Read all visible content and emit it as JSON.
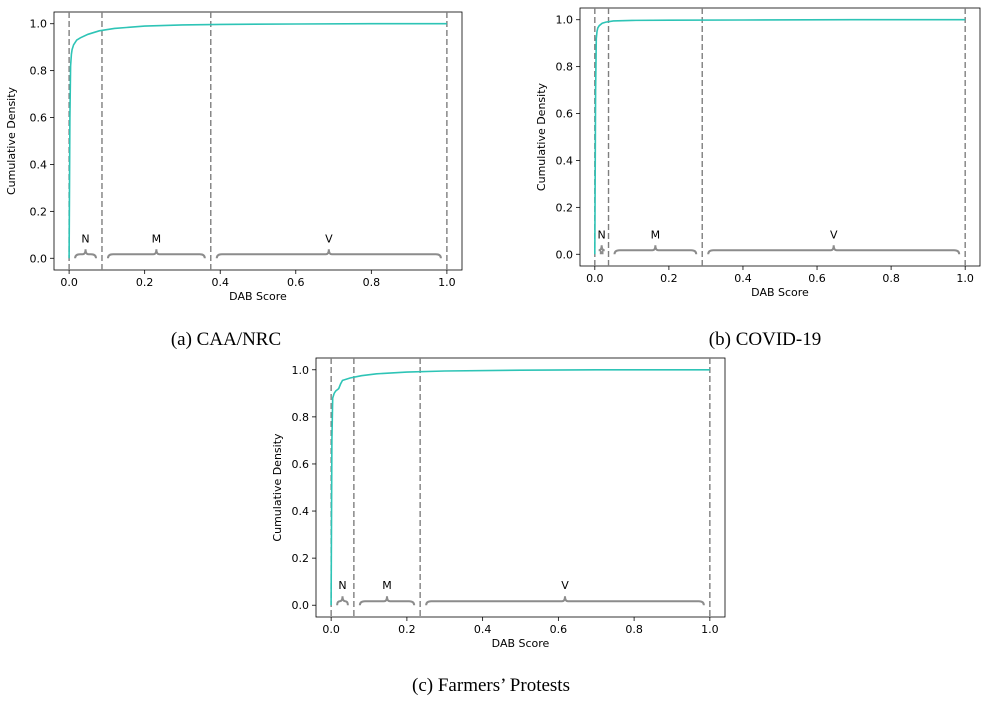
{
  "chart_data": [
    {
      "type": "line",
      "caption": "(a) CAA/NRC",
      "xlabel": "DAB Score",
      "ylabel": "Cumulative Density",
      "xlim": [
        -0.04,
        1.04
      ],
      "ylim": [
        -0.05,
        1.05
      ],
      "xticks": [
        "0.0",
        "0.2",
        "0.4",
        "0.6",
        "0.8",
        "1.0"
      ],
      "yticks": [
        "0.0",
        "0.2",
        "0.4",
        "0.6",
        "0.8",
        "1.0"
      ],
      "line_color": "#2ec4b6",
      "series": [
        {
          "x": [
            0.0,
            0.002,
            0.004,
            0.006,
            0.008,
            0.012,
            0.02,
            0.03,
            0.05,
            0.08,
            0.12,
            0.2,
            0.3,
            0.4,
            0.6,
            0.8,
            1.0
          ],
          "y": [
            0.0,
            0.6,
            0.82,
            0.87,
            0.89,
            0.91,
            0.93,
            0.94,
            0.955,
            0.97,
            0.98,
            0.99,
            0.995,
            0.997,
            0.999,
            1.0,
            1.0
          ]
        }
      ],
      "vlines": [
        0.0,
        0.087,
        0.375,
        1.0
      ],
      "regions": [
        {
          "label": "N",
          "from": 0.0,
          "to": 0.087
        },
        {
          "label": "M",
          "from": 0.087,
          "to": 0.375
        },
        {
          "label": "V",
          "from": 0.375,
          "to": 1.0
        }
      ],
      "grid": false
    },
    {
      "type": "line",
      "caption": "(b) COVID-19",
      "xlabel": "DAB Score",
      "ylabel": "Cumulative Density",
      "xlim": [
        -0.04,
        1.04
      ],
      "ylim": [
        -0.05,
        1.05
      ],
      "xticks": [
        "0.0",
        "0.2",
        "0.4",
        "0.6",
        "0.8",
        "1.0"
      ],
      "yticks": [
        "0.0",
        "0.2",
        "0.4",
        "0.6",
        "0.8",
        "1.0"
      ],
      "line_color": "#2ec4b6",
      "series": [
        {
          "x": [
            0.0,
            0.002,
            0.004,
            0.006,
            0.008,
            0.012,
            0.02,
            0.03,
            0.05,
            0.1,
            0.2,
            0.4,
            0.7,
            1.0
          ],
          "y": [
            0.0,
            0.7,
            0.92,
            0.95,
            0.965,
            0.975,
            0.985,
            0.99,
            0.995,
            0.997,
            0.998,
            0.999,
            1.0,
            1.0
          ]
        }
      ],
      "vlines": [
        0.0,
        0.037,
        0.29,
        1.0
      ],
      "regions": [
        {
          "label": "N",
          "from": 0.0,
          "to": 0.037
        },
        {
          "label": "M",
          "from": 0.037,
          "to": 0.29
        },
        {
          "label": "V",
          "from": 0.29,
          "to": 1.0
        }
      ],
      "grid": false
    },
    {
      "type": "line",
      "caption": "(c) Farmers’ Protests",
      "xlabel": "DAB Score",
      "ylabel": "Cumulative Density",
      "xlim": [
        -0.04,
        1.04
      ],
      "ylim": [
        -0.05,
        1.05
      ],
      "xticks": [
        "0.0",
        "0.2",
        "0.4",
        "0.6",
        "0.8",
        "1.0"
      ],
      "yticks": [
        "0.0",
        "0.2",
        "0.4",
        "0.6",
        "0.8",
        "1.0"
      ],
      "line_color": "#2ec4b6",
      "series": [
        {
          "x": [
            0.0,
            0.002,
            0.004,
            0.008,
            0.012,
            0.02,
            0.025,
            0.03,
            0.05,
            0.08,
            0.12,
            0.2,
            0.3,
            0.5,
            0.7,
            1.0
          ],
          "y": [
            0.0,
            0.7,
            0.88,
            0.9,
            0.91,
            0.92,
            0.94,
            0.955,
            0.965,
            0.975,
            0.983,
            0.99,
            0.995,
            0.998,
            1.0,
            1.0
          ]
        }
      ],
      "vlines": [
        0.0,
        0.06,
        0.235,
        1.0
      ],
      "regions": [
        {
          "label": "N",
          "from": 0.0,
          "to": 0.06
        },
        {
          "label": "M",
          "from": 0.06,
          "to": 0.235
        },
        {
          "label": "V",
          "from": 0.235,
          "to": 1.0
        }
      ],
      "grid": false
    }
  ]
}
